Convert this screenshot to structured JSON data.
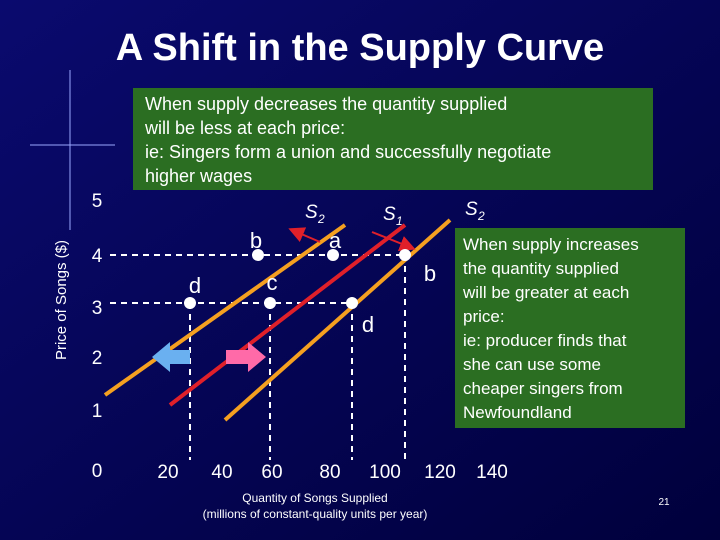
{
  "header": {
    "title": "A Shift in the Supply Curve"
  },
  "notes": {
    "decrease": [
      "When supply decreases the quantity supplied",
      "will be less at each price:",
      "ie: Singers form a union and successfully negotiate",
      "higher wages"
    ],
    "increase": [
      "When supply increases",
      "the quantity supplied",
      "will be greater at each",
      "price:",
      "ie: producer finds that",
      "she can use some",
      "cheaper singers from",
      "Newfoundland"
    ]
  },
  "axes": {
    "y_label": "Price of Songs ($)",
    "x_label": [
      "Quantity of Songs Supplied",
      "(millions of constant-quality units per year)"
    ],
    "y_ticks": [
      "5",
      "4",
      "3",
      "2",
      "1",
      "0"
    ],
    "x_ticks": [
      "20",
      "40",
      "60",
      "80",
      "100",
      "120",
      "140"
    ]
  },
  "curves": {
    "s2_left": {
      "name": "S",
      "sub": "2"
    },
    "s1": {
      "name": "S",
      "sub": "1"
    },
    "s2_right": {
      "name": "S",
      "sub": "2"
    }
  },
  "points": [
    "b",
    "a",
    "d",
    "c",
    "b",
    "d"
  ],
  "footer": {
    "page": "21"
  }
}
